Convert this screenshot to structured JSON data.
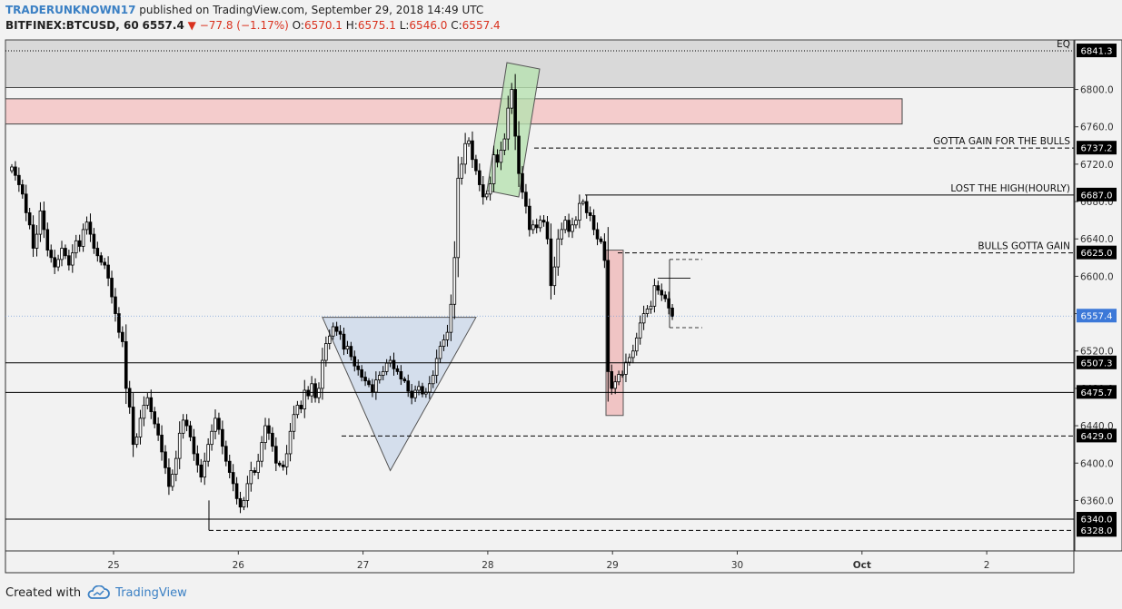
{
  "header": {
    "author": "TRADERUNKNOWN17",
    "published": "published on TradingView.com, September 29, 2018 14:49 UTC",
    "symbol": "BITFINEX:BTCUSD, 60",
    "last": "6557.4",
    "change": "−77.8 (−1.17%)",
    "open_label": "O:",
    "open": "6570.1",
    "high_label": "H:",
    "high": "6575.1",
    "low_label": "L:",
    "low": "6546.0",
    "close_label": "C:",
    "close": "6557.4"
  },
  "footer": {
    "created_with": "Created with",
    "brand": "TradingView"
  },
  "colors": {
    "up": "#ffffff",
    "down": "#000000",
    "resistance_zone": "#f4cccc",
    "eq_zone": "#d9d9d9",
    "triangle": "#c9d7ea",
    "green_box": "#b7e1b0",
    "red_box": "#f0bcbc",
    "price_label": "#3c78d8"
  },
  "chart_data": {
    "type": "candlestick",
    "ylim": [
      6306,
      6853
    ],
    "y_ticks": [
      6360,
      6400,
      6440,
      6480,
      6520,
      6560,
      6600,
      6640,
      6680,
      6720,
      6760,
      6800
    ],
    "y_tick_labels": [
      "6360.0",
      "6400.0",
      "6440.0",
      "6480.0",
      "6520.0",
      "6560.0",
      "6600.0",
      "6640.0",
      "6680.0",
      "6720.0",
      "6760.0",
      "6800.0"
    ],
    "x_ticks": [
      {
        "label": "25",
        "day": 25
      },
      {
        "label": "26",
        "day": 26
      },
      {
        "label": "27",
        "day": 27
      },
      {
        "label": "28",
        "day": 28
      },
      {
        "label": "29",
        "day": 29
      },
      {
        "label": "30",
        "day": 30
      },
      {
        "label": "Oct",
        "day": 31
      },
      {
        "label": "2",
        "day": 32
      }
    ],
    "levels": [
      {
        "price": 6841.3,
        "label": "6841.3",
        "style": "dotted",
        "text": "EQ"
      },
      {
        "price": 6737.2,
        "label": "6737.2",
        "style": "dashed",
        "text": "GOTTA GAIN FOR THE BULLS"
      },
      {
        "price": 6687.0,
        "label": "6687.0",
        "style": "solid",
        "text": "LOST THE HIGH(HOURLY)"
      },
      {
        "price": 6625.0,
        "label": "6625.0",
        "style": "dashed",
        "text": "BULLS GOTTA GAIN"
      },
      {
        "price": 6507.3,
        "label": "6507.3",
        "style": "solid",
        "text": ""
      },
      {
        "price": 6475.7,
        "label": "6475.7",
        "style": "solid",
        "text": ""
      },
      {
        "price": 6429.0,
        "label": "6429.0",
        "style": "dashed",
        "text": ""
      },
      {
        "price": 6340.0,
        "label": "6340.0",
        "style": "solid",
        "text": ""
      },
      {
        "price": 6328.0,
        "label": "6328.0",
        "style": "dashed",
        "text": ""
      }
    ],
    "current_price": {
      "price": 6557.4,
      "label": "6557.4"
    },
    "closes": [
      6717,
      6708,
      6698,
      6688,
      6668,
      6655,
      6630,
      6645,
      6670,
      6650,
      6628,
      6620,
      6610,
      6618,
      6630,
      6622,
      6612,
      6625,
      6638,
      6632,
      6650,
      6658,
      6645,
      6630,
      6622,
      6615,
      6612,
      6598,
      6578,
      6560,
      6540,
      6530,
      6480,
      6460,
      6420,
      6428,
      6448,
      6462,
      6470,
      6455,
      6442,
      6430,
      6412,
      6395,
      6375,
      6388,
      6405,
      6432,
      6446,
      6440,
      6428,
      6410,
      6398,
      6385,
      6402,
      6420,
      6434,
      6448,
      6436,
      6418,
      6402,
      6390,
      6378,
      6362,
      6353,
      6360,
      6378,
      6392,
      6390,
      6402,
      6422,
      6440,
      6432,
      6418,
      6400,
      6398,
      6396,
      6410,
      6434,
      6452,
      6462,
      6458,
      6478,
      6472,
      6485,
      6470,
      6480,
      6510,
      6528,
      6536,
      6546,
      6541,
      6538,
      6522,
      6525,
      6514,
      6504,
      6500,
      6492,
      6488,
      6484,
      6476,
      6489,
      6494,
      6498,
      6507,
      6510,
      6501,
      6498,
      6490,
      6488,
      6477,
      6470,
      6478,
      6482,
      6474,
      6476,
      6485,
      6494,
      6512,
      6525,
      6532,
      6540,
      6570,
      6620,
      6705,
      6720,
      6742,
      6745,
      6725,
      6713,
      6698,
      6685,
      6688,
      6699,
      6730,
      6722,
      6735,
      6747,
      6780,
      6800,
      6750,
      6710,
      6690,
      6675,
      6650,
      6655,
      6652,
      6660,
      6658,
      6640,
      6590,
      6610,
      6640,
      6650,
      6660,
      6648,
      6655,
      6660,
      6678,
      6680,
      6668,
      6665,
      6650,
      6640,
      6637,
      6617,
      6498,
      6480,
      6487,
      6495,
      6495,
      6508,
      6513,
      6520,
      6534,
      6550,
      6560,
      6565,
      6568,
      6590,
      6585,
      6580,
      6576,
      6566,
      6557
    ]
  }
}
